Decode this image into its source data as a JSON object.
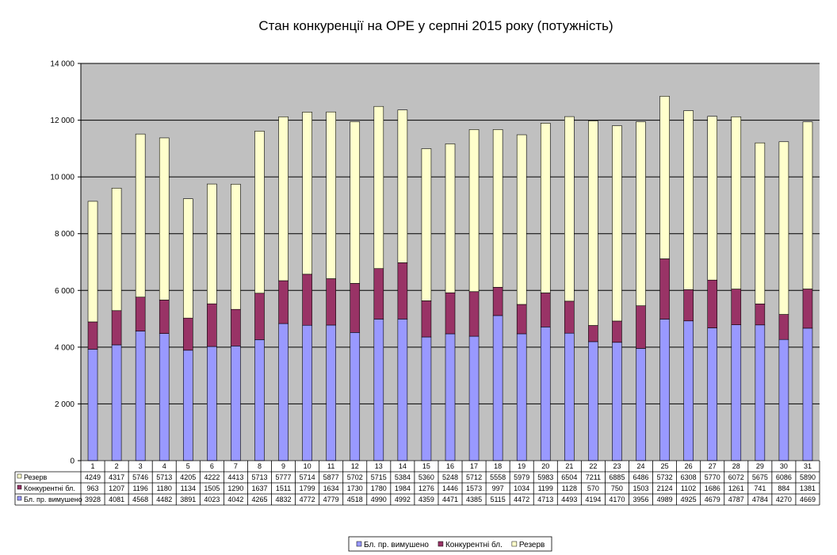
{
  "chart_data": {
    "type": "bar",
    "stacked": true,
    "title": "Стан конкуренції на ОРЕ  у серпні 2015 року (потужність)",
    "categories": [
      "1",
      "2",
      "3",
      "4",
      "5",
      "6",
      "7",
      "8",
      "9",
      "10",
      "11",
      "12",
      "13",
      "14",
      "15",
      "16",
      "17",
      "18",
      "19",
      "20",
      "21",
      "22",
      "23",
      "24",
      "25",
      "26",
      "27",
      "28",
      "29",
      "30",
      "31"
    ],
    "series": [
      {
        "name": "Бл. пр. вимушено",
        "color": "#9999ff",
        "values": [
          3928,
          4081,
          4568,
          4482,
          3891,
          4023,
          4042,
          4265,
          4832,
          4772,
          4779,
          4518,
          4990,
          4992,
          4359,
          4471,
          4385,
          5115,
          4472,
          4713,
          4493,
          4194,
          4170,
          3956,
          4989,
          4925,
          4679,
          4787,
          4784,
          4270,
          4669
        ]
      },
      {
        "name": "Конкурентні бл.",
        "color": "#993366",
        "values": [
          963,
          1207,
          1196,
          1180,
          1134,
          1505,
          1290,
          1637,
          1511,
          1799,
          1634,
          1730,
          1780,
          1984,
          1276,
          1446,
          1573,
          997,
          1034,
          1199,
          1128,
          570,
          750,
          1503,
          2124,
          1102,
          1686,
          1261,
          741,
          884,
          1381
        ]
      },
      {
        "name": "Резерв",
        "color": "#ffffcc",
        "values": [
          4249,
          4317,
          5746,
          5713,
          4205,
          4222,
          4413,
          5713,
          5777,
          5714,
          5877,
          5702,
          5715,
          5384,
          5360,
          5248,
          5712,
          5558,
          5979,
          5983,
          6504,
          7211,
          6885,
          6486,
          5732,
          6308,
          5770,
          6072,
          5675,
          6086,
          5890
        ]
      }
    ],
    "ylim": [
      0,
      14000
    ],
    "yticks": [
      "0",
      "2 000",
      "4 000",
      "6 000",
      "8 000",
      "10 000",
      "12 000",
      "14 000"
    ],
    "grid": true,
    "legend_position": "bottom",
    "data_table": true,
    "plot_background": "#c0c0c0"
  }
}
